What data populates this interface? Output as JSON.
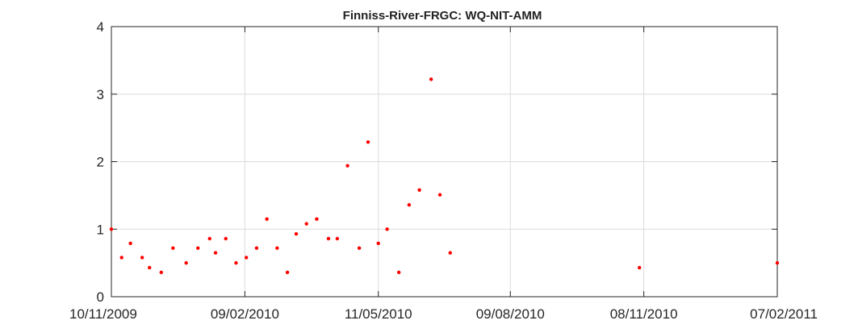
{
  "chart_data": {
    "type": "scatter",
    "title": "Finniss-River-FRGC: WQ-NIT-AMM",
    "xlabel": "",
    "ylabel": "",
    "grid": true,
    "marker_color": "#ff0000",
    "xlim": [
      "2009-11-10",
      "2011-02-07"
    ],
    "ylim": [
      0,
      4
    ],
    "x_ticks": [
      "2009-11-10",
      "2010-02-09",
      "2010-05-11",
      "2010-08-09",
      "2010-11-08",
      "2011-02-07"
    ],
    "x_tick_labels": [
      "10/11/2009",
      "09/02/2010",
      "11/05/2010",
      "09/08/2010",
      "08/11/2010",
      "07/02/2011"
    ],
    "y_ticks": [
      0,
      1,
      2,
      3,
      4
    ],
    "y_tick_labels": [
      "0",
      "1",
      "2",
      "3",
      "4"
    ],
    "series": [
      {
        "points": [
          {
            "x": "2009-11-10",
            "y": 1.0
          },
          {
            "x": "2009-11-17",
            "y": 0.58
          },
          {
            "x": "2009-11-23",
            "y": 0.79
          },
          {
            "x": "2009-12-01",
            "y": 0.58
          },
          {
            "x": "2009-12-06",
            "y": 0.43
          },
          {
            "x": "2009-12-14",
            "y": 0.36
          },
          {
            "x": "2009-12-22",
            "y": 0.72
          },
          {
            "x": "2009-12-31",
            "y": 0.5
          },
          {
            "x": "2010-01-08",
            "y": 0.72
          },
          {
            "x": "2010-01-16",
            "y": 0.86
          },
          {
            "x": "2010-01-20",
            "y": 0.65
          },
          {
            "x": "2010-01-27",
            "y": 0.86
          },
          {
            "x": "2010-02-03",
            "y": 0.5
          },
          {
            "x": "2010-02-10",
            "y": 0.58
          },
          {
            "x": "2010-02-17",
            "y": 0.72
          },
          {
            "x": "2010-02-24",
            "y": 1.15
          },
          {
            "x": "2010-03-03",
            "y": 0.72
          },
          {
            "x": "2010-03-10",
            "y": 0.36
          },
          {
            "x": "2010-03-16",
            "y": 0.93
          },
          {
            "x": "2010-03-23",
            "y": 1.08
          },
          {
            "x": "2010-03-30",
            "y": 1.15
          },
          {
            "x": "2010-04-07",
            "y": 0.86
          },
          {
            "x": "2010-04-13",
            "y": 0.86
          },
          {
            "x": "2010-04-20",
            "y": 1.94
          },
          {
            "x": "2010-04-28",
            "y": 0.72
          },
          {
            "x": "2010-05-04",
            "y": 2.29
          },
          {
            "x": "2010-05-11",
            "y": 0.79
          },
          {
            "x": "2010-05-17",
            "y": 1.0
          },
          {
            "x": "2010-05-25",
            "y": 0.36
          },
          {
            "x": "2010-06-01",
            "y": 1.36
          },
          {
            "x": "2010-06-08",
            "y": 1.58
          },
          {
            "x": "2010-06-16",
            "y": 3.22
          },
          {
            "x": "2010-06-22",
            "y": 1.51
          },
          {
            "x": "2010-06-29",
            "y": 0.65
          },
          {
            "x": "2010-11-05",
            "y": 0.43
          },
          {
            "x": "2011-02-07",
            "y": 0.5
          }
        ]
      }
    ]
  }
}
